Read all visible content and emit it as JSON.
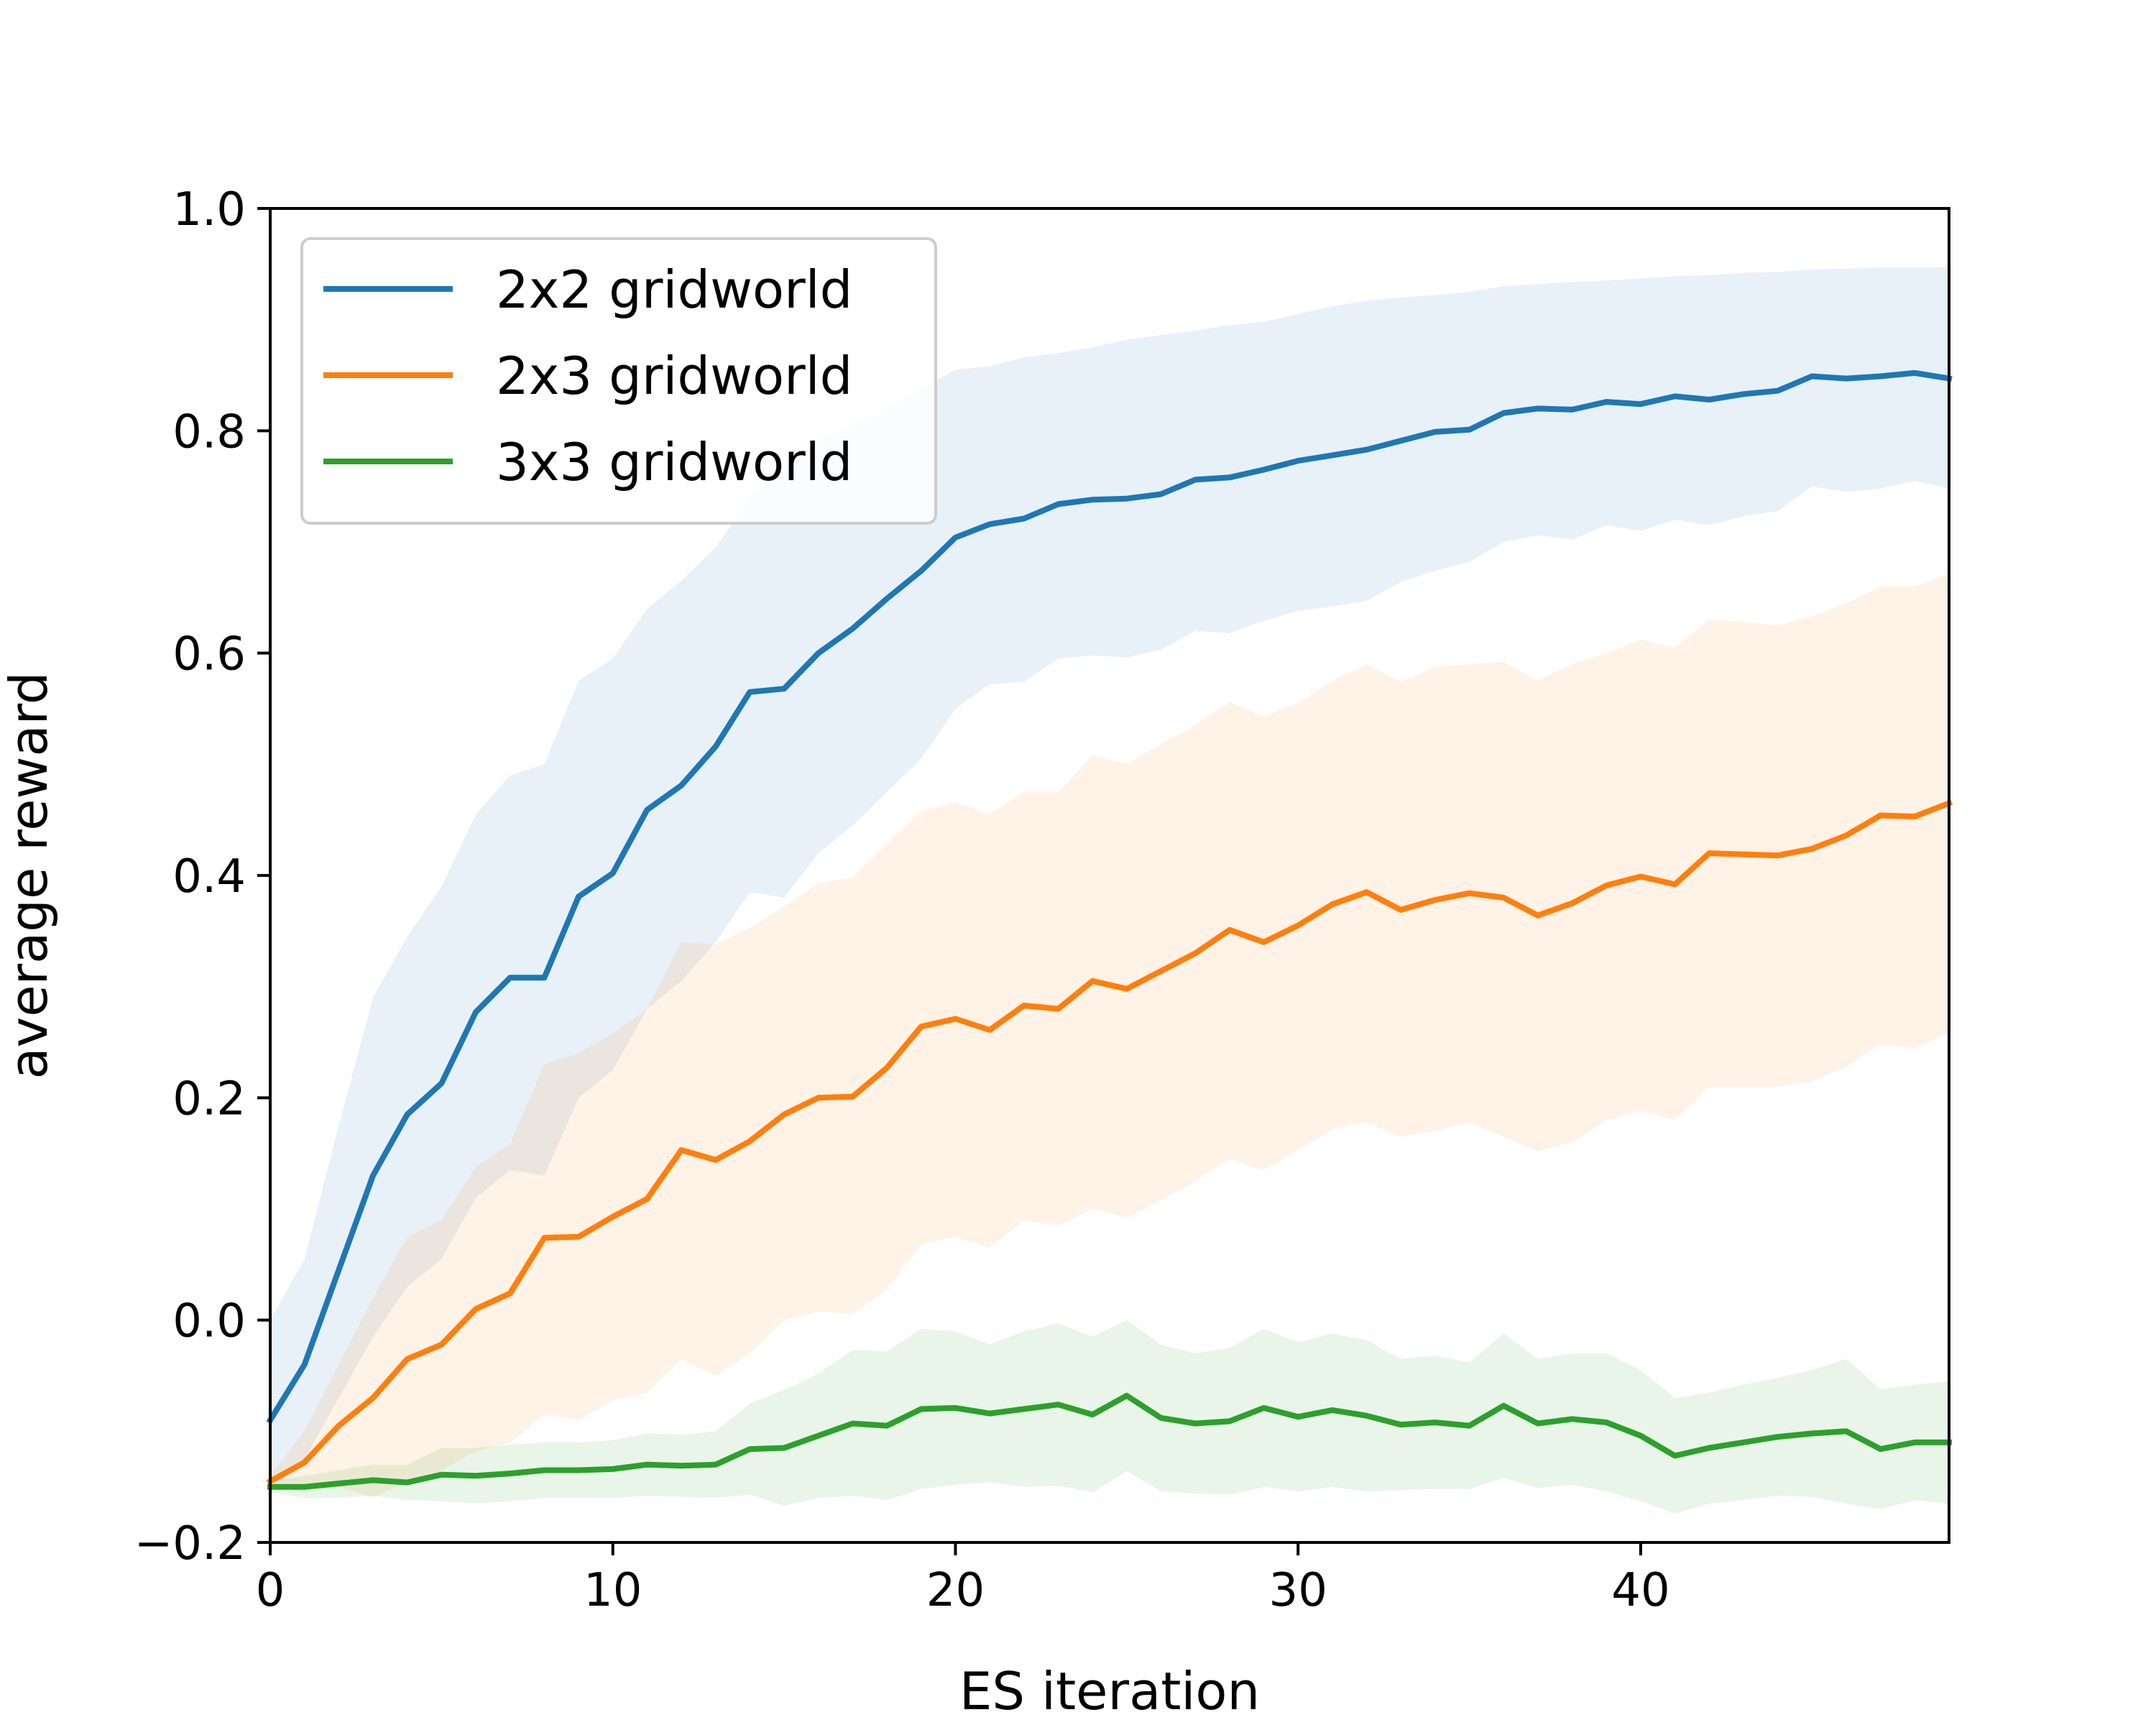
{
  "chart_data": {
    "type": "line",
    "xlabel": "ES iteration",
    "ylabel": "average reward",
    "xlim": [
      0,
      49
    ],
    "ylim": [
      -0.2,
      1.0
    ],
    "xticks": [
      0,
      10,
      20,
      30,
      40
    ],
    "xtick_labels": [
      "0",
      "10",
      "20",
      "30",
      "40"
    ],
    "yticks": [
      -0.2,
      0.0,
      0.2,
      0.4,
      0.6,
      0.8,
      1.0
    ],
    "ytick_labels": [
      "−0.2",
      "0.0",
      "0.2",
      "0.4",
      "0.6",
      "0.8",
      "1.0"
    ],
    "grid": false,
    "legend_position": "top-left",
    "x": [
      0,
      1,
      2,
      3,
      4,
      5,
      6,
      7,
      8,
      9,
      10,
      11,
      12,
      13,
      14,
      15,
      16,
      17,
      18,
      19,
      20,
      21,
      22,
      23,
      24,
      25,
      26,
      27,
      28,
      29,
      30,
      31,
      32,
      33,
      34,
      35,
      36,
      37,
      38,
      39,
      40,
      41,
      42,
      43,
      44,
      45,
      46,
      47,
      48,
      49
    ],
    "series": [
      {
        "name": "2x2 gridworld",
        "color": "#1f77b4",
        "values": [
          -0.09,
          -0.04,
          0.045,
          0.13,
          0.185,
          0.213,
          0.277,
          0.308,
          0.308,
          0.381,
          0.402,
          0.459,
          0.481,
          0.516,
          0.565,
          0.568,
          0.6,
          0.622,
          0.649,
          0.674,
          0.704,
          0.716,
          0.721,
          0.734,
          0.738,
          0.739,
          0.743,
          0.756,
          0.758,
          0.765,
          0.773,
          0.778,
          0.783,
          0.791,
          0.799,
          0.801,
          0.816,
          0.82,
          0.819,
          0.826,
          0.824,
          0.831,
          0.828,
          0.833,
          0.836,
          0.849,
          0.847,
          0.849,
          0.852,
          0.847
        ],
        "upper": [
          0.0,
          0.055,
          0.175,
          0.29,
          0.345,
          0.39,
          0.455,
          0.49,
          0.5,
          0.575,
          0.595,
          0.64,
          0.665,
          0.695,
          0.74,
          0.765,
          0.79,
          0.805,
          0.82,
          0.838,
          0.855,
          0.858,
          0.866,
          0.87,
          0.875,
          0.882,
          0.886,
          0.89,
          0.895,
          0.898,
          0.905,
          0.912,
          0.917,
          0.92,
          0.922,
          0.925,
          0.93,
          0.932,
          0.934,
          0.935,
          0.937,
          0.939,
          0.94,
          0.942,
          0.943,
          0.945,
          0.946,
          0.947,
          0.947,
          0.947
        ],
        "lower": [
          -0.145,
          -0.125,
          -0.07,
          -0.015,
          0.03,
          0.055,
          0.11,
          0.135,
          0.13,
          0.2,
          0.225,
          0.28,
          0.305,
          0.34,
          0.385,
          0.38,
          0.42,
          0.445,
          0.475,
          0.505,
          0.55,
          0.572,
          0.574,
          0.595,
          0.598,
          0.596,
          0.603,
          0.62,
          0.618,
          0.629,
          0.638,
          0.642,
          0.647,
          0.664,
          0.674,
          0.682,
          0.7,
          0.706,
          0.702,
          0.715,
          0.71,
          0.72,
          0.715,
          0.723,
          0.728,
          0.75,
          0.745,
          0.748,
          0.755,
          0.748
        ]
      },
      {
        "name": "2x3 gridworld",
        "color": "#ff7f0e",
        "values": [
          -0.145,
          -0.128,
          -0.095,
          -0.07,
          -0.035,
          -0.022,
          0.01,
          0.024,
          0.074,
          0.075,
          0.093,
          0.109,
          0.153,
          0.144,
          0.161,
          0.185,
          0.2,
          0.201,
          0.227,
          0.264,
          0.271,
          0.261,
          0.283,
          0.28,
          0.305,
          0.298,
          0.314,
          0.33,
          0.351,
          0.34,
          0.355,
          0.374,
          0.385,
          0.369,
          0.378,
          0.384,
          0.38,
          0.364,
          0.375,
          0.391,
          0.399,
          0.392,
          0.42,
          0.419,
          0.418,
          0.424,
          0.436,
          0.454,
          0.453,
          0.465
        ],
        "upper": [
          -0.14,
          -0.1,
          -0.04,
          0.02,
          0.075,
          0.09,
          0.138,
          0.158,
          0.23,
          0.24,
          0.258,
          0.28,
          0.34,
          0.338,
          0.353,
          0.372,
          0.393,
          0.398,
          0.428,
          0.458,
          0.466,
          0.455,
          0.475,
          0.475,
          0.508,
          0.5,
          0.518,
          0.535,
          0.556,
          0.543,
          0.555,
          0.575,
          0.59,
          0.574,
          0.588,
          0.59,
          0.592,
          0.575,
          0.59,
          0.6,
          0.612,
          0.605,
          0.63,
          0.628,
          0.625,
          0.633,
          0.645,
          0.66,
          0.66,
          0.672
        ],
        "lower": [
          -0.15,
          -0.155,
          -0.15,
          -0.16,
          -0.145,
          -0.135,
          -0.118,
          -0.11,
          -0.085,
          -0.09,
          -0.072,
          -0.065,
          -0.035,
          -0.05,
          -0.03,
          0.0,
          0.008,
          0.005,
          0.028,
          0.068,
          0.075,
          0.065,
          0.09,
          0.085,
          0.1,
          0.092,
          0.108,
          0.125,
          0.145,
          0.135,
          0.153,
          0.172,
          0.178,
          0.165,
          0.17,
          0.178,
          0.165,
          0.152,
          0.16,
          0.18,
          0.188,
          0.18,
          0.21,
          0.21,
          0.21,
          0.215,
          0.228,
          0.248,
          0.245,
          0.258
        ]
      },
      {
        "name": "3x3 gridworld",
        "color": "#2ca02c",
        "values": [
          -0.15,
          -0.15,
          -0.147,
          -0.144,
          -0.146,
          -0.139,
          -0.14,
          -0.138,
          -0.135,
          -0.135,
          -0.134,
          -0.13,
          -0.131,
          -0.13,
          -0.116,
          -0.115,
          -0.104,
          -0.093,
          -0.095,
          -0.08,
          -0.079,
          -0.084,
          -0.08,
          -0.076,
          -0.085,
          -0.068,
          -0.088,
          -0.093,
          -0.091,
          -0.079,
          -0.087,
          -0.081,
          -0.086,
          -0.094,
          -0.092,
          -0.095,
          -0.077,
          -0.093,
          -0.089,
          -0.092,
          -0.104,
          -0.122,
          -0.115,
          -0.11,
          -0.105,
          -0.102,
          -0.1,
          -0.116,
          -0.11,
          -0.11
        ],
        "upper": [
          -0.145,
          -0.14,
          -0.135,
          -0.13,
          -0.13,
          -0.115,
          -0.115,
          -0.112,
          -0.11,
          -0.11,
          -0.108,
          -0.102,
          -0.103,
          -0.1,
          -0.075,
          -0.063,
          -0.048,
          -0.027,
          -0.028,
          -0.008,
          -0.01,
          -0.022,
          -0.01,
          -0.003,
          -0.015,
          0.0,
          -0.022,
          -0.03,
          -0.025,
          -0.008,
          -0.02,
          -0.012,
          -0.018,
          -0.035,
          -0.032,
          -0.038,
          -0.012,
          -0.035,
          -0.03,
          -0.03,
          -0.045,
          -0.07,
          -0.065,
          -0.058,
          -0.052,
          -0.045,
          -0.035,
          -0.062,
          -0.058,
          -0.055
        ],
        "lower": [
          -0.155,
          -0.16,
          -0.16,
          -0.158,
          -0.162,
          -0.163,
          -0.165,
          -0.163,
          -0.16,
          -0.16,
          -0.16,
          -0.158,
          -0.159,
          -0.16,
          -0.157,
          -0.167,
          -0.16,
          -0.158,
          -0.162,
          -0.152,
          -0.148,
          -0.146,
          -0.15,
          -0.149,
          -0.155,
          -0.136,
          -0.154,
          -0.156,
          -0.157,
          -0.15,
          -0.154,
          -0.15,
          -0.154,
          -0.153,
          -0.152,
          -0.152,
          -0.142,
          -0.151,
          -0.148,
          -0.154,
          -0.163,
          -0.174,
          -0.165,
          -0.162,
          -0.158,
          -0.159,
          -0.165,
          -0.17,
          -0.162,
          -0.165
        ]
      }
    ]
  }
}
